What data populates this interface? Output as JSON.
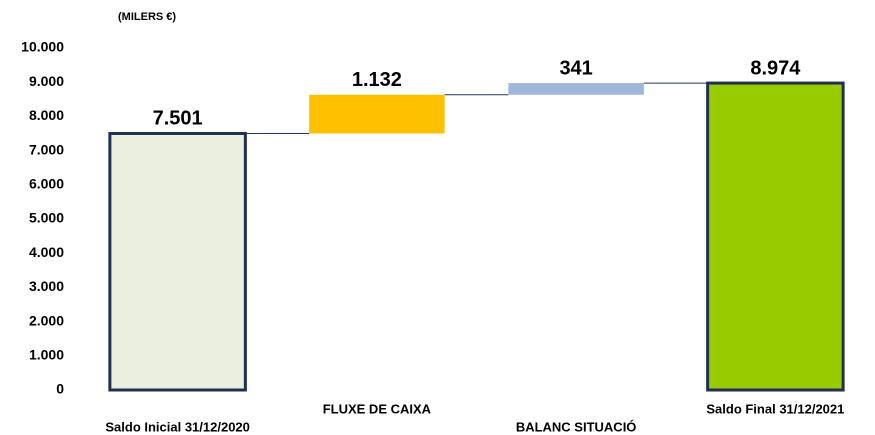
{
  "chart_data": {
    "type": "waterfall",
    "ylabel": "(MILERS €)",
    "categories": [
      "Saldo Inicial 31/12/2020",
      "FLUXE DE CAIXA",
      "BALANC SITUACIÓ",
      "Saldo Final 31/12/2021"
    ],
    "values": [
      7501,
      1132,
      341,
      8974
    ],
    "value_labels": [
      "7.501",
      "1.132",
      "341",
      "8.974"
    ],
    "measure": [
      "absolute",
      "relative",
      "relative",
      "total"
    ],
    "colors": [
      "#ebefdf",
      "#ffc000",
      "#9db6d9",
      "#99cc00"
    ],
    "ylim": [
      0,
      10000
    ],
    "yticks": [
      0,
      {
        "value": 1000,
        "label": "1.000"
      },
      {
        "value": 2000,
        "label": "2.000"
      },
      {
        "value": 3000,
        "label": "3.000"
      },
      {
        "value": 4000,
        "label": "4.000"
      },
      {
        "value": 5000,
        "label": "5.000"
      },
      {
        "value": 6000,
        "label": "6.000"
      },
      {
        "value": 7000,
        "label": "7.000"
      },
      {
        "value": 8000,
        "label": "8.000"
      },
      {
        "value": 9000,
        "label": "9.000"
      },
      {
        "value": 10000,
        "label": "10.000"
      }
    ],
    "grid": false
  }
}
